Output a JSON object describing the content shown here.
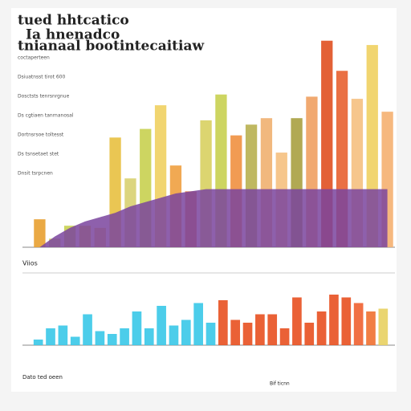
{
  "chart_data": [
    {
      "type": "bar",
      "title": "tued hhtcatico",
      "subtitle": "Ia hnenadco",
      "caption": "tnianaal bootintecaitiaw",
      "notes": [
        "coctaperteen",
        "Dsiuatnsst tirot 600",
        "Dosctsts tenrsnrgnue",
        "Ds cgtiaen tanrnanosal",
        "Dortnsrsoe toltesst",
        "Ds tsnsetaet stet",
        "Dnsit tsrpcnen"
      ],
      "axis_label": "Viios",
      "ylim": [
        0,
        100
      ],
      "values": [
        13,
        4,
        10,
        10,
        9,
        51,
        32,
        55,
        66,
        38,
        26,
        59,
        71,
        52,
        57,
        60,
        44,
        60,
        70,
        96,
        82,
        69,
        94,
        63
      ],
      "colors": [
        "#e8a030",
        "#d0d060",
        "#c8d050",
        "#e8c840",
        "#f0c060",
        "#e8c040",
        "#d8d070",
        "#c8d050",
        "#f0d060",
        "#f0a040",
        "#e88040",
        "#d8d060",
        "#c8d050",
        "#f09040",
        "#b8b050",
        "#f0b070",
        "#f5c080",
        "#a8a040",
        "#f0a060",
        "#e05020",
        "#e86030",
        "#f5c080",
        "#f0d060",
        "#f5b070"
      ]
    },
    {
      "type": "area",
      "ylim": [
        0,
        100
      ],
      "color": "#7a449e",
      "values": [
        0,
        5,
        9,
        12,
        14,
        16,
        19,
        21,
        23,
        25,
        26,
        27,
        27,
        27,
        27,
        27,
        27,
        27,
        27,
        27,
        27,
        27,
        27,
        27
      ]
    },
    {
      "type": "bar",
      "ylim": [
        0,
        100
      ],
      "footer": "Dato ted oeen",
      "footer_right": "Bif ticnn",
      "values": [
        10,
        30,
        35,
        15,
        55,
        25,
        20,
        30,
        60,
        30,
        70,
        35,
        45,
        75,
        40,
        80,
        45,
        40,
        55,
        55,
        30,
        85,
        40,
        60,
        90,
        85,
        75,
        60,
        65
      ],
      "colors": [
        "#38c8e8",
        "#38c8e8",
        "#38c8e8",
        "#38c8e8",
        "#38c8e8",
        "#38c8e8",
        "#38c8e8",
        "#38c8e8",
        "#38c8e8",
        "#38c8e8",
        "#38c8e8",
        "#38c8e8",
        "#38c8e8",
        "#38c8e8",
        "#38c8e8",
        "#e85020",
        "#e85020",
        "#e85020",
        "#e85020",
        "#e85020",
        "#e85020",
        "#e85020",
        "#e85020",
        "#e85020",
        "#e85020",
        "#e85020",
        "#f06030",
        "#f07030",
        "#e8d060"
      ]
    }
  ]
}
